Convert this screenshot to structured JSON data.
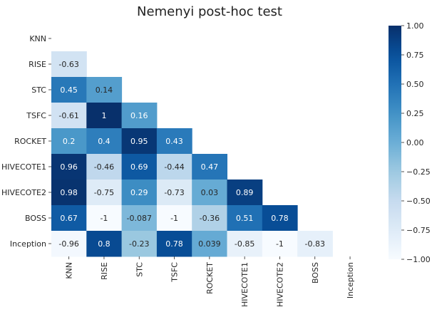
{
  "chart_data": {
    "type": "heatmap",
    "title": "Nemenyi post-hoc test",
    "xlabel": "",
    "ylabel": "",
    "rows": [
      "KNN",
      "RISE",
      "STC",
      "TSFC",
      "ROCKET",
      "HIVECOTE1",
      "HIVECOTE2",
      "BOSS",
      "Inception"
    ],
    "cols": [
      "KNN",
      "RISE",
      "STC",
      "TSFC",
      "ROCKET",
      "HIVECOTE1",
      "HIVECOTE2",
      "BOSS",
      "Inception"
    ],
    "mask": "upper triangle including diagonal",
    "values": [
      [],
      [
        -0.63
      ],
      [
        0.45,
        0.14
      ],
      [
        -0.61,
        1,
        0.16
      ],
      [
        0.2,
        0.4,
        0.95,
        0.43
      ],
      [
        0.96,
        -0.46,
        0.69,
        -0.44,
        0.47
      ],
      [
        0.98,
        -0.75,
        0.29,
        -0.73,
        0.03,
        0.89
      ],
      [
        0.67,
        -1,
        -0.087,
        -1,
        -0.36,
        0.51,
        0.78
      ],
      [
        -0.96,
        0.8,
        -0.23,
        0.78,
        0.039,
        -0.85,
        -1,
        -0.83
      ]
    ],
    "labels": [
      [],
      [
        "-0.63"
      ],
      [
        "0.45",
        "0.14"
      ],
      [
        "-0.61",
        "1",
        "0.16"
      ],
      [
        "0.2",
        "0.4",
        "0.95",
        "0.43"
      ],
      [
        "0.96",
        "-0.46",
        "0.69",
        "-0.44",
        "0.47"
      ],
      [
        "0.98",
        "-0.75",
        "0.29",
        "-0.73",
        "0.03",
        "0.89"
      ],
      [
        "0.67",
        "-1",
        "-0.087",
        "-1",
        "-0.36",
        "0.51",
        "0.78"
      ],
      [
        "-0.96",
        "0.8",
        "-0.23",
        "0.78",
        "0.039",
        "-0.85",
        "-1",
        "-0.83"
      ]
    ],
    "colormap": "Blues",
    "vmin": -1,
    "vmax": 1,
    "colorbar": {
      "ticks": [
        1.0,
        0.75,
        0.5,
        0.25,
        0.0,
        -0.25,
        -0.5,
        -0.75,
        -1.0
      ],
      "tick_labels": [
        "1.00",
        "0.75",
        "0.50",
        "0.25",
        "0.00",
        "−0.25",
        "−0.50",
        "−0.75",
        "−1.00"
      ]
    },
    "grid": false,
    "legend": "colorbar right"
  }
}
